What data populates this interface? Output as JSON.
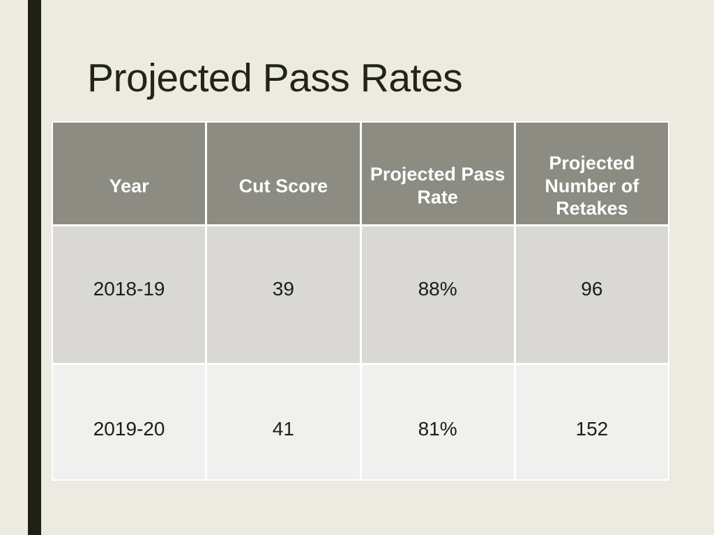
{
  "slide": {
    "title": "Projected Pass Rates"
  },
  "table": {
    "columns": [
      "Year",
      "Cut Score",
      "Projected Pass Rate",
      "Projected Number of Retakes"
    ],
    "rows": [
      [
        "2018-19",
        "39",
        "88%",
        "96"
      ],
      [
        "2019-20",
        "41",
        "81%",
        "152"
      ]
    ]
  },
  "colors": {
    "background": "#EDEAE1",
    "accent_bar": "#1E2012",
    "title_text": "#212419",
    "header_bg": "#8C8C83",
    "header_text": "#FFFFFF",
    "row_odd_bg": "#D9D8D4",
    "row_even_bg": "#F0F0EE",
    "body_text": "#1C1C1A",
    "border": "#FFFFFF"
  }
}
